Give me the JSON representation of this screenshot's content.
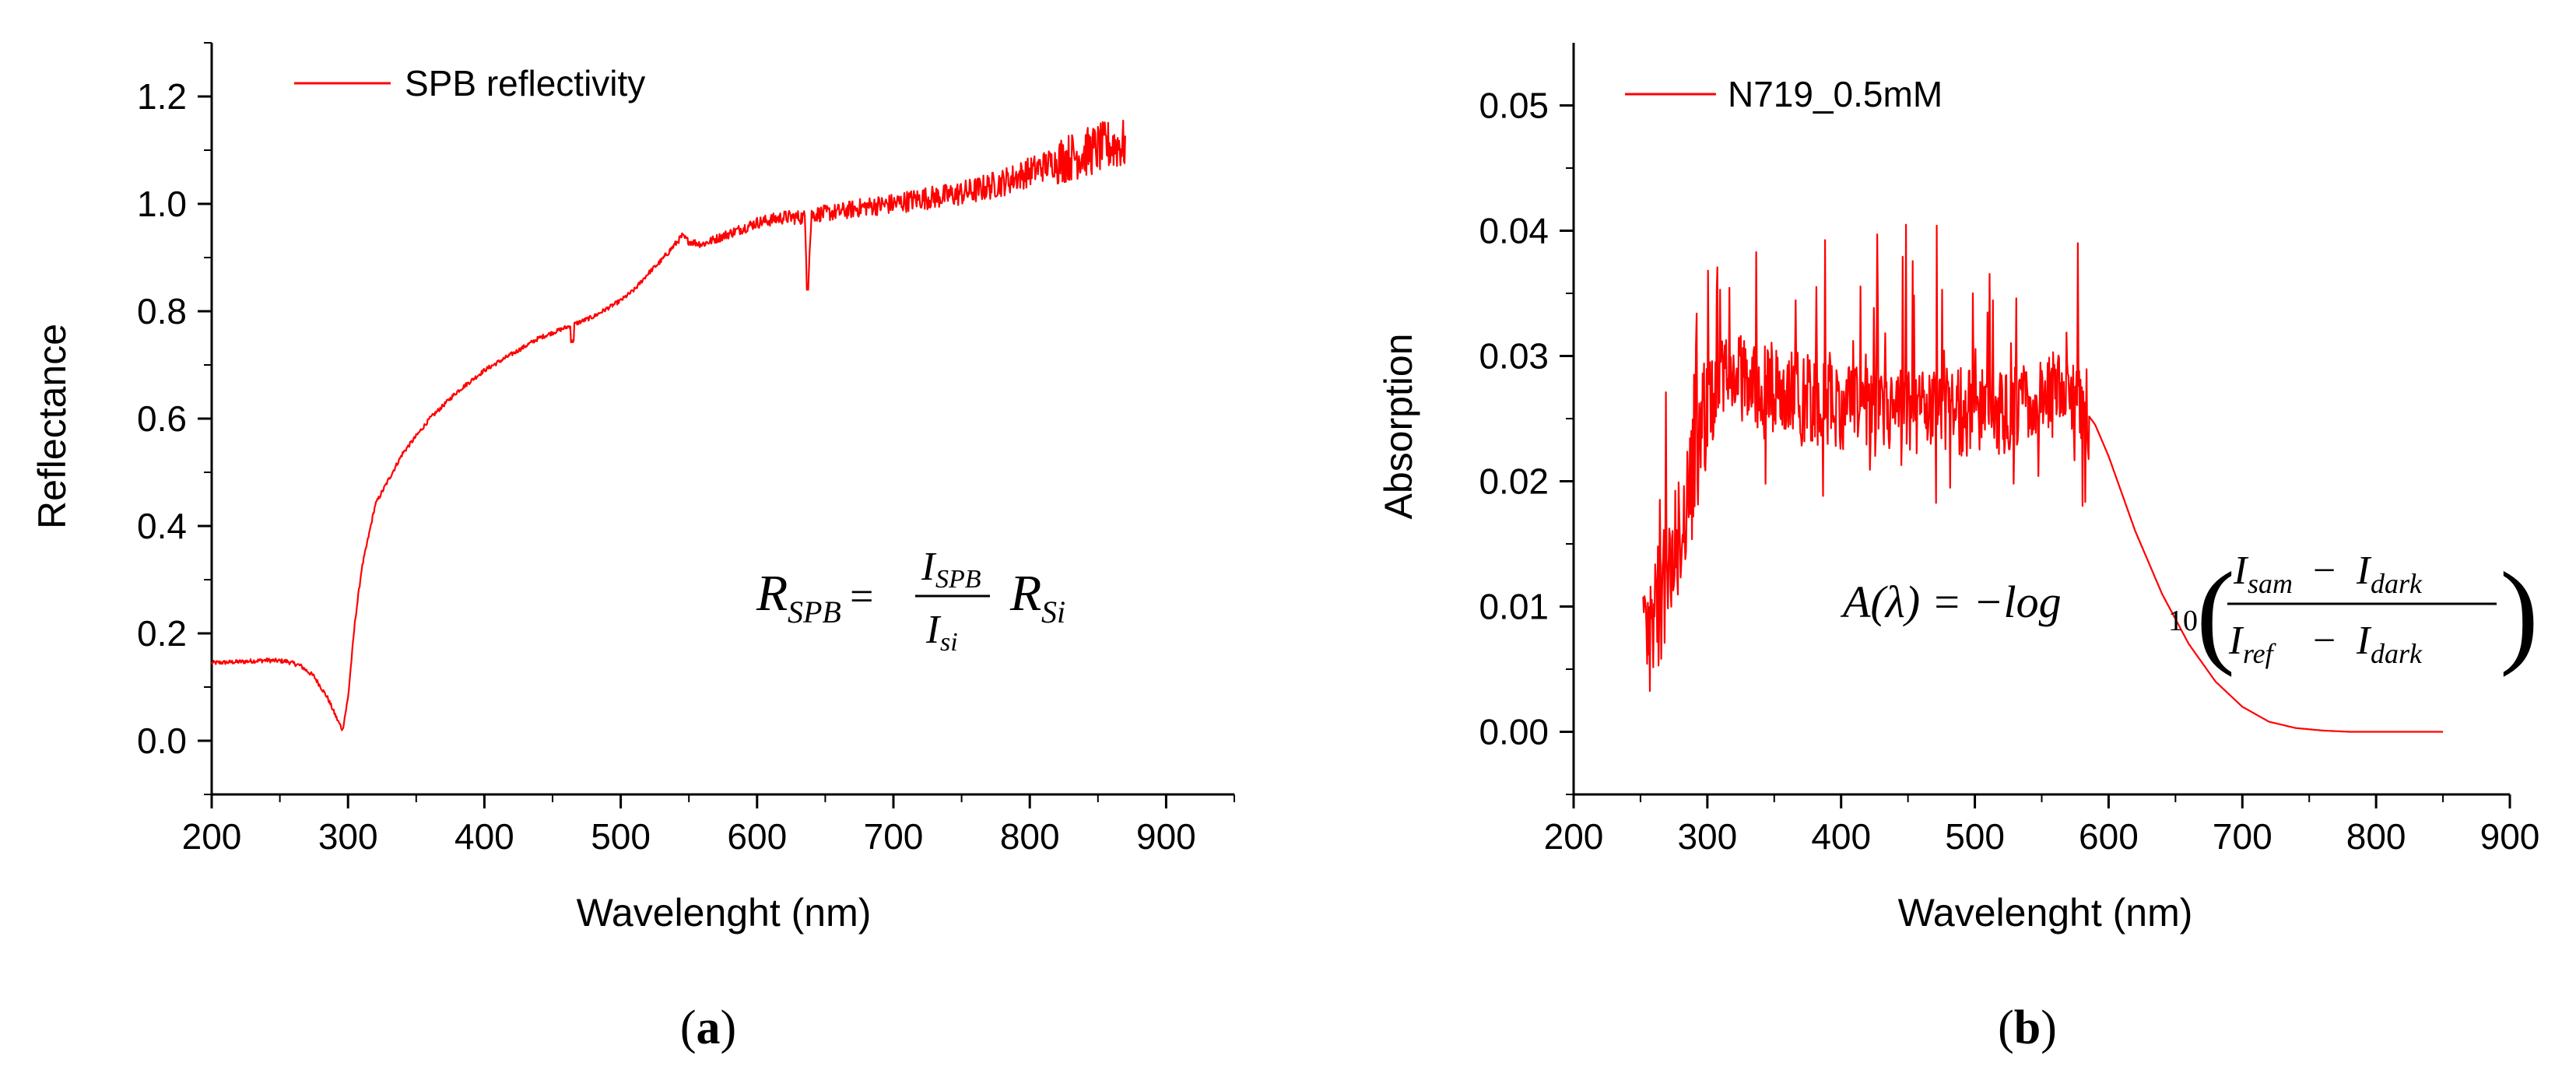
{
  "chart_data": [
    {
      "type": "line",
      "panel_label": "(a)",
      "panel_letter": "a",
      "title": "",
      "xlabel": "Wavelenght (nm)",
      "ylabel": "Reflectance",
      "xlim": [
        200,
        950
      ],
      "ylim": [
        -0.1,
        1.3
      ],
      "xticks": [
        200,
        300,
        400,
        500,
        600,
        700,
        800,
        900
      ],
      "yticks": [
        0.0,
        0.2,
        0.4,
        0.6,
        0.8,
        1.0,
        1.2
      ],
      "xtick_labels": [
        "200",
        "300",
        "400",
        "500",
        "600",
        "700",
        "800",
        "900"
      ],
      "ytick_labels": [
        "0.0",
        "0.2",
        "0.4",
        "0.6",
        "0.8",
        "1.0",
        "1.2"
      ],
      "legend_position": "top-left",
      "grid": false,
      "series": [
        {
          "name": "SPB reflectivity",
          "color": "#ff0000",
          "x": [
            200,
            220,
            240,
            255,
            265,
            275,
            285,
            292,
            296,
            300,
            305,
            310,
            320,
            340,
            360,
            380,
            400,
            420,
            440,
            460,
            480,
            500,
            510,
            520,
            530,
            540,
            545,
            550,
            560,
            580,
            600,
            620,
            635,
            637,
            640,
            660,
            680,
            700,
            720,
            740,
            760,
            780,
            800,
            820,
            840,
            860,
            870
          ],
          "values": [
            0.145,
            0.147,
            0.15,
            0.148,
            0.14,
            0.12,
            0.08,
            0.04,
            0.02,
            0.08,
            0.22,
            0.32,
            0.44,
            0.535,
            0.6,
            0.65,
            0.69,
            0.72,
            0.75,
            0.77,
            0.79,
            0.82,
            0.84,
            0.87,
            0.895,
            0.925,
            0.94,
            0.93,
            0.925,
            0.945,
            0.965,
            0.975,
            0.975,
            0.84,
            0.98,
            0.985,
            0.995,
            1.0,
            1.01,
            1.015,
            1.025,
            1.04,
            1.06,
            1.08,
            1.095,
            1.11,
            1.11
          ],
          "noise_amplitude": 0.01,
          "noise_growth": "increases toward 870 nm (about 0.05)"
        }
      ],
      "annotation": {
        "R": "R",
        "R_sub": "SPB",
        "equals": "=",
        "num_I": "I",
        "num_sub": "SPB",
        "den_I": "I",
        "den_sub": "si",
        "R2": "R",
        "R2_sub": "Si"
      }
    },
    {
      "type": "line",
      "panel_label": "(b)",
      "panel_letter": "b",
      "title": "",
      "xlabel": "Wavelenght (nm)",
      "ylabel": "Absorption",
      "xlim": [
        200,
        900
      ],
      "ylim": [
        -0.005,
        0.055
      ],
      "xticks": [
        200,
        300,
        400,
        500,
        600,
        700,
        800,
        900
      ],
      "yticks": [
        0.0,
        0.01,
        0.02,
        0.03,
        0.04,
        0.05
      ],
      "xtick_labels": [
        "200",
        "300",
        "400",
        "500",
        "600",
        "700",
        "800",
        "900"
      ],
      "ytick_labels": [
        "0.00",
        "0.01",
        "0.02",
        "0.03",
        "0.04",
        "0.05"
      ],
      "legend_position": "top-left",
      "grid": false,
      "series": [
        {
          "name": "N719_0.5mM",
          "color": "#ff0000",
          "x": [
            252,
            260,
            270,
            280,
            290,
            300,
            310,
            320,
            340,
            360,
            380,
            400,
            420,
            440,
            460,
            480,
            500,
            520,
            540,
            560,
            575,
            580,
            590,
            600,
            620,
            640,
            660,
            680,
            700,
            720,
            740,
            760,
            780,
            800,
            820,
            850
          ],
          "values": [
            0.006,
            0.009,
            0.012,
            0.016,
            0.021,
            0.026,
            0.028,
            0.0285,
            0.0275,
            0.027,
            0.0265,
            0.026,
            0.0255,
            0.0255,
            0.0255,
            0.0255,
            0.0255,
            0.0255,
            0.026,
            0.0265,
            0.027,
            0.026,
            0.0245,
            0.022,
            0.016,
            0.011,
            0.007,
            0.004,
            0.002,
            0.0008,
            0.0003,
            0.0001,
            0.0,
            0.0,
            0.0,
            0.0
          ],
          "noise_amplitude": 0.004,
          "noise_region": "252 to 585 nm, with spikes up to about 0.046"
        }
      ],
      "annotation": {
        "lead": "A(λ) = −log",
        "sub10": "10",
        "num": "I",
        "num_sub1": "sam",
        "minus": "−",
        "num2": "I",
        "num_sub2": "dark",
        "den": "I",
        "den_sub1": "ref",
        "den_minus": "−",
        "den2": "I",
        "den_sub2": "dark",
        "open_paren": "(",
        "close_paren": ")"
      }
    }
  ]
}
